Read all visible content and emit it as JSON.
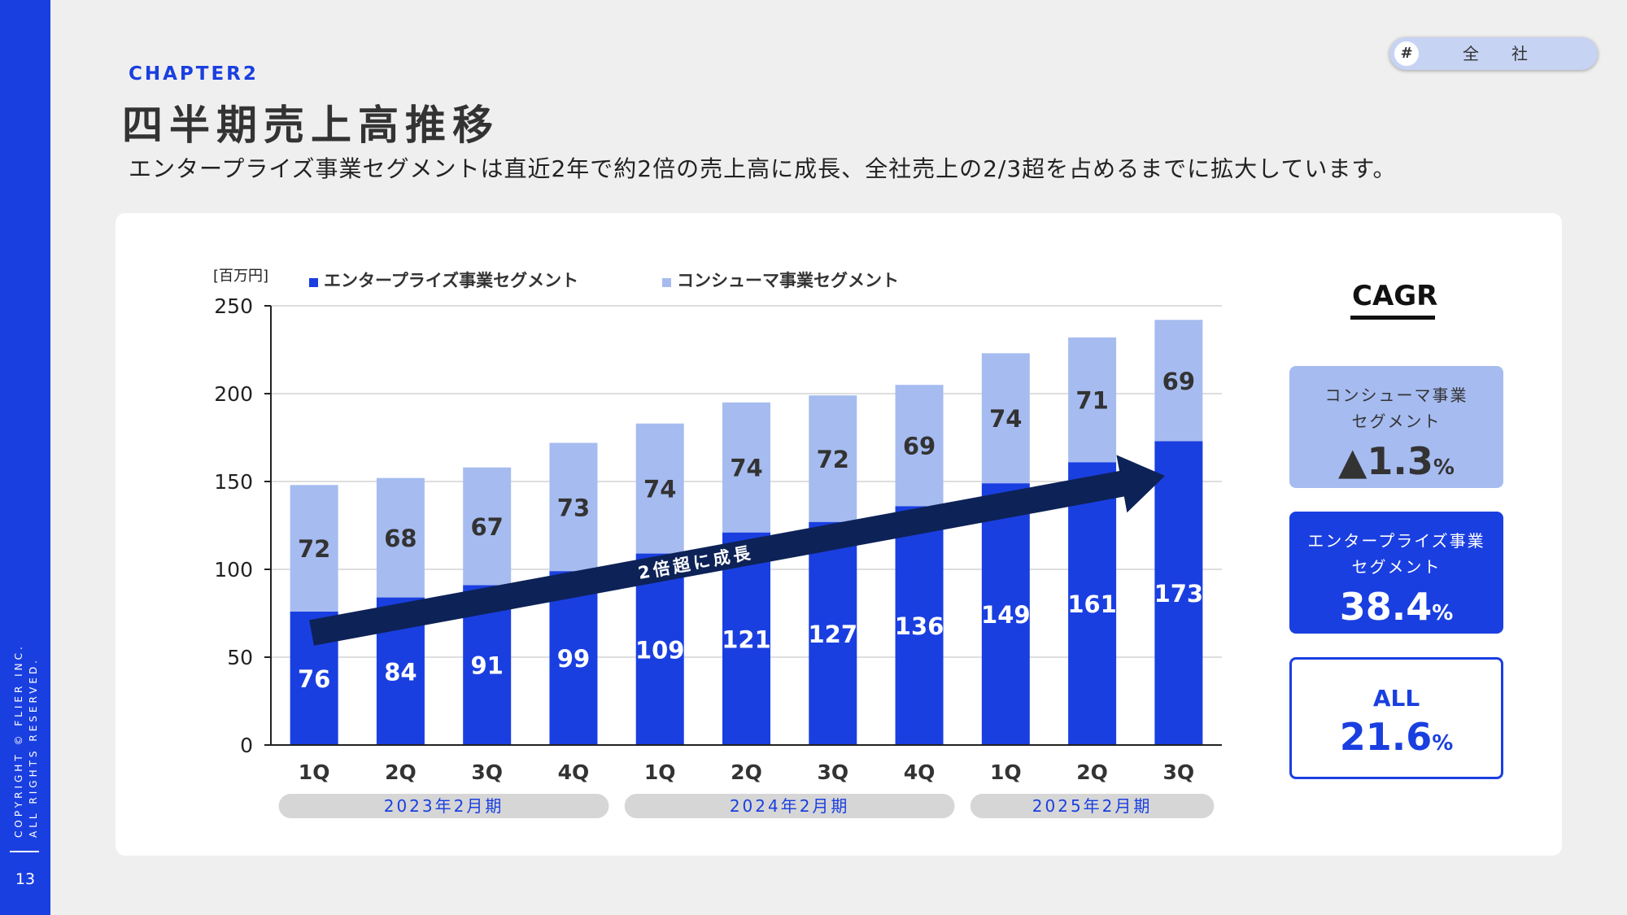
{
  "sidebar": {
    "copyright_line1": "COPYRIGHT © FLIER INC.",
    "copyright_line2": "ALL RIGHTS RESERVED.",
    "page_number": "13"
  },
  "header": {
    "chapter": "CHAPTER2",
    "title": "四半期売上高推移",
    "subtitle": "エンタープライズ事業セグメントは直近2年で約2倍の売上高に成長、全社売上の2/3超を占めるまでに拡大しています。",
    "tag_symbol": "#",
    "tag_label": "全社"
  },
  "colors": {
    "enterprise": "#1a3fe0",
    "consumer": "#a6bcf0",
    "arrow": "#0d2257",
    "accent": "#1a3fe0"
  },
  "chart_data": {
    "type": "bar",
    "stacked": true,
    "unit_label": "[百万円]",
    "categories": [
      "1Q",
      "2Q",
      "3Q",
      "4Q",
      "1Q",
      "2Q",
      "3Q",
      "4Q",
      "1Q",
      "2Q",
      "3Q"
    ],
    "fiscal_groups": [
      {
        "label": "2023年2月期",
        "count": 4
      },
      {
        "label": "2024年2月期",
        "count": 4
      },
      {
        "label": "2025年2月期",
        "count": 3
      }
    ],
    "series": [
      {
        "name": "エンタープライズ事業セグメント",
        "values": [
          76,
          84,
          91,
          99,
          109,
          121,
          127,
          136,
          149,
          161,
          173
        ]
      },
      {
        "name": "コンシューマ事業セグメント",
        "values": [
          72,
          68,
          67,
          73,
          74,
          74,
          72,
          69,
          74,
          71,
          69
        ]
      }
    ],
    "ylim": [
      0,
      250
    ],
    "yticks": [
      0,
      50,
      100,
      150,
      200,
      250
    ],
    "grid": true,
    "legend": "top",
    "annotation": "2倍超に成長"
  },
  "cagr": {
    "title": "CAGR",
    "consumer": {
      "label": "コンシューマ事業\nセグメント",
      "value": "▲1.3",
      "unit": "%"
    },
    "enterprise": {
      "label": "エンタープライズ事業\nセグメント",
      "value": "38.4",
      "unit": "%"
    },
    "all": {
      "label": "ALL",
      "value": "21.6",
      "unit": "%"
    }
  }
}
